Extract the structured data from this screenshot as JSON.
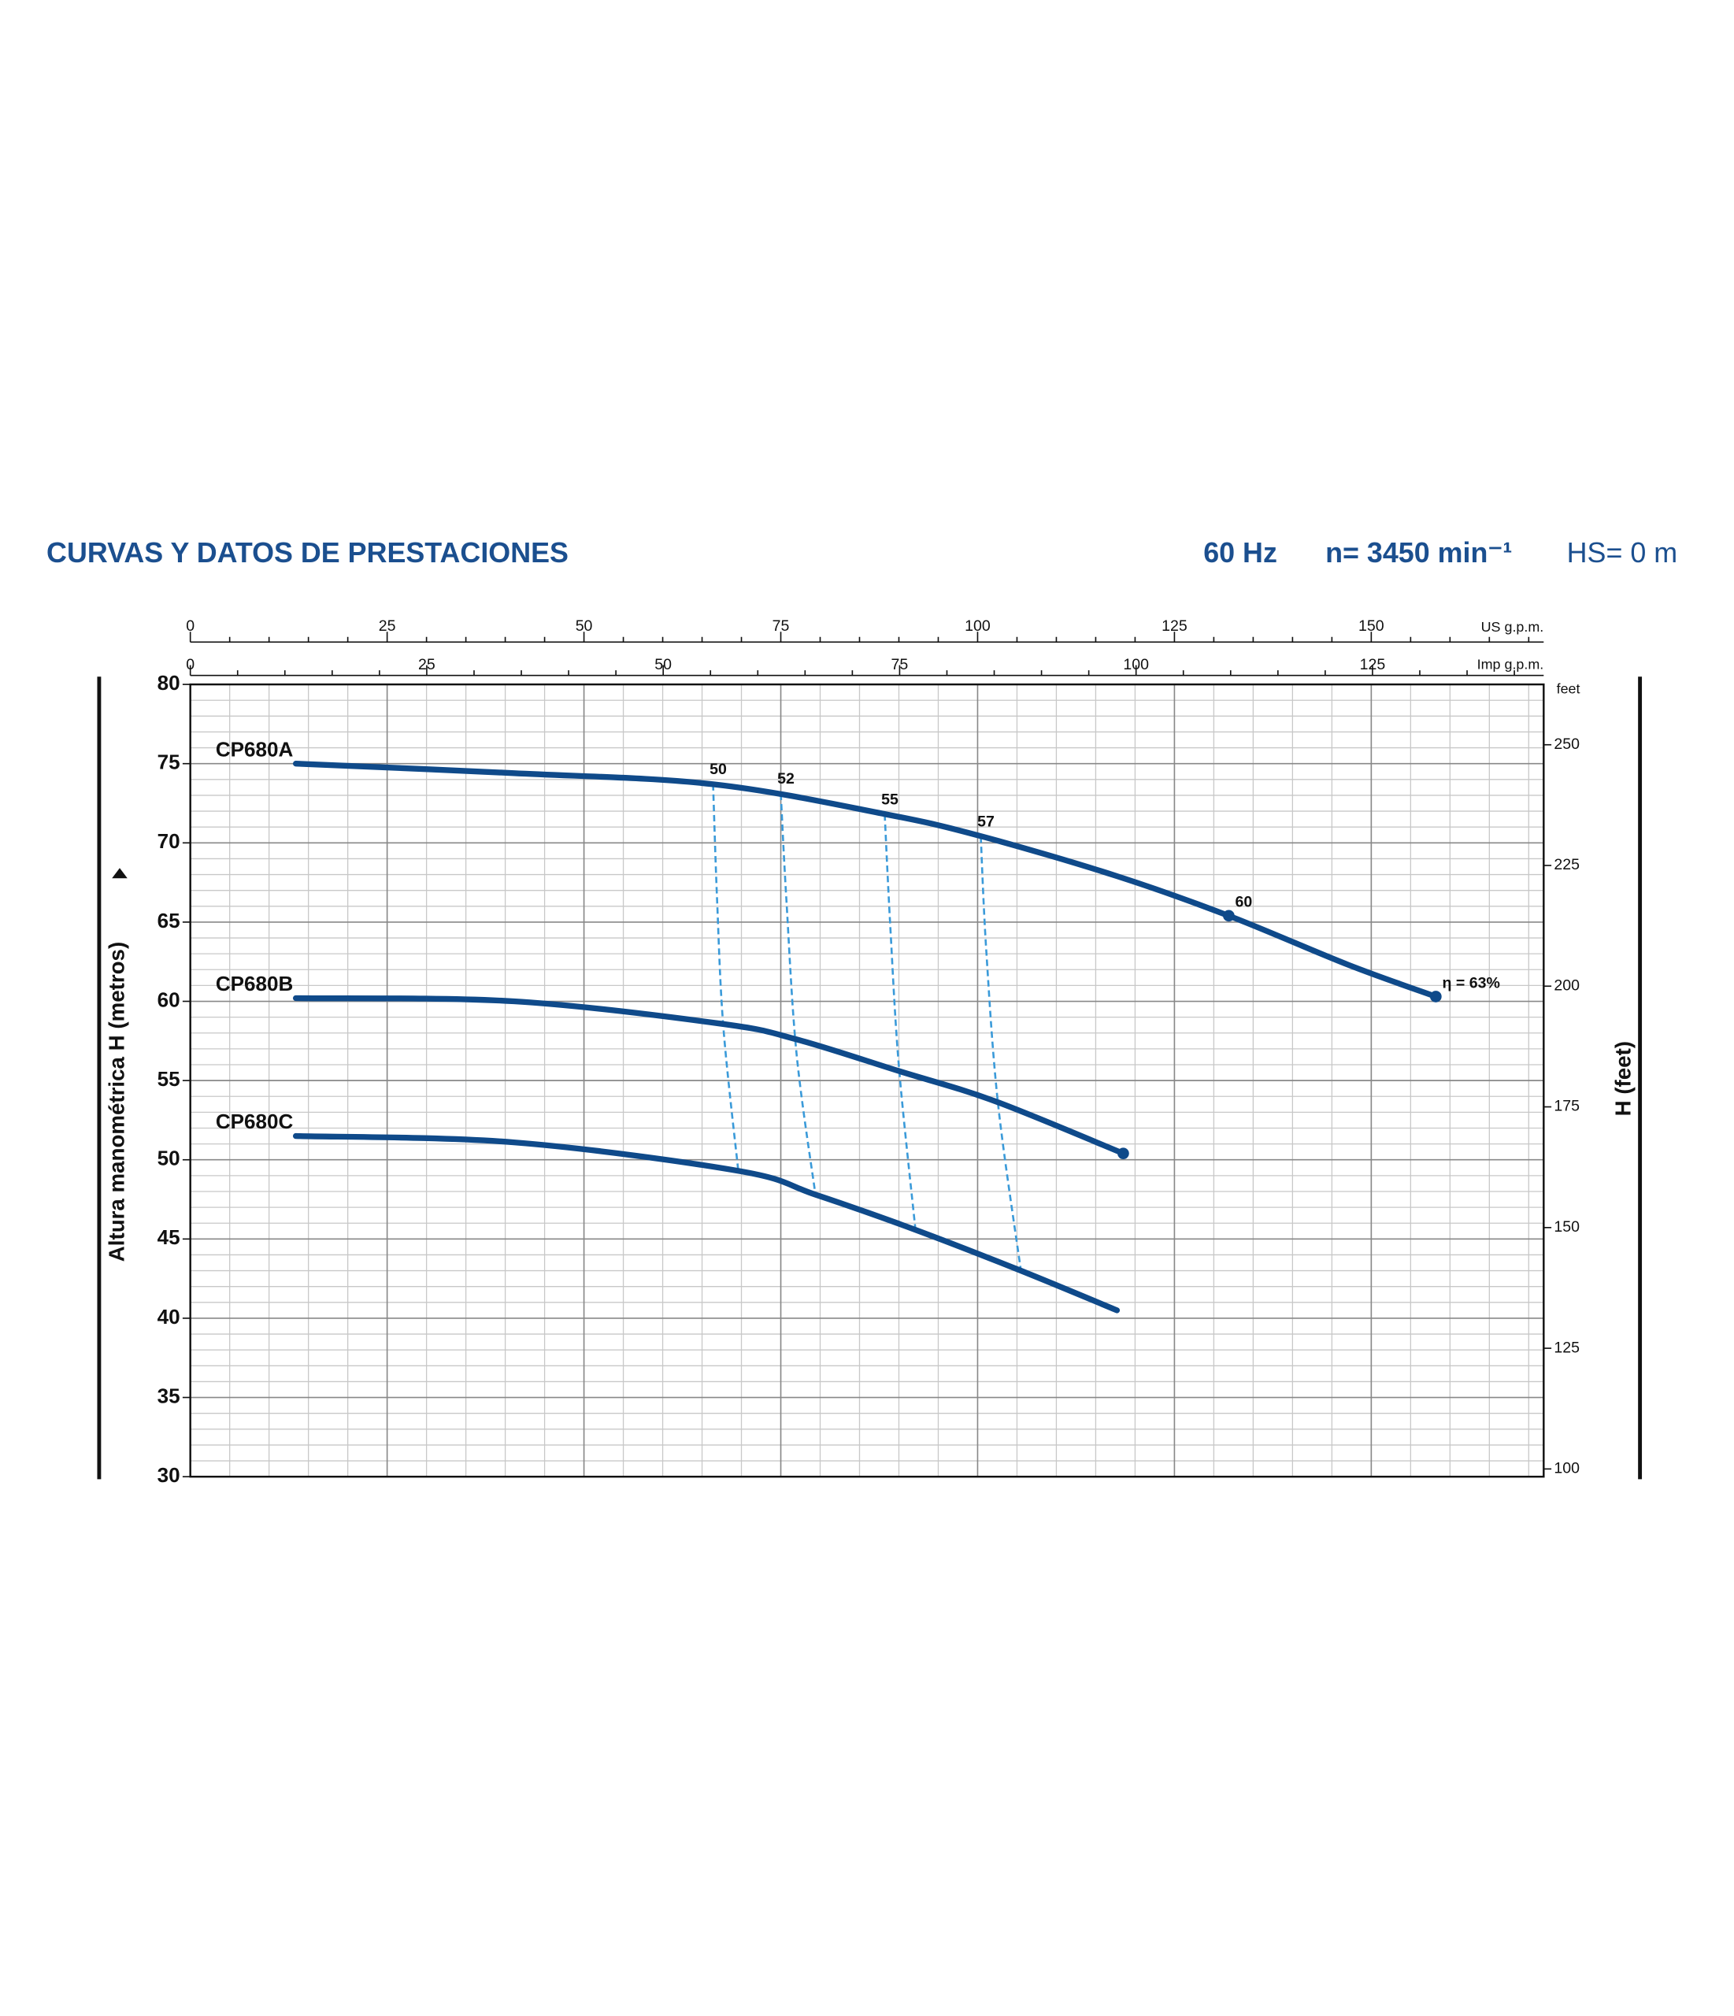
{
  "header": {
    "title": "CURVAS Y DATOS DE PRESTACIONES",
    "frequency": "60 Hz",
    "speed": "n= 3450 min⁻¹",
    "suction": "HS= 0 m"
  },
  "chart_data": {
    "type": "line",
    "ylabel": "Altura manométrica H  (metros)",
    "y2label": "H (feet)",
    "y2unit": "feet",
    "xunit": "US g.p.m.",
    "x2unit": "Imp g.p.m.",
    "xlim": [
      0,
      171.9
    ],
    "xticks": [
      0,
      25,
      50,
      75,
      100,
      125,
      150
    ],
    "xminorticks": [
      5,
      10,
      15,
      20,
      30,
      35,
      40,
      45,
      55,
      60,
      65,
      70,
      80,
      85,
      90,
      95,
      105,
      110,
      115,
      120,
      130,
      135,
      140,
      145,
      155,
      160,
      165,
      170
    ],
    "x2lim": [
      0,
      143.1
    ],
    "x2ticks": [
      0,
      25,
      50,
      75,
      100,
      125
    ],
    "x2minorticks": [
      5,
      10,
      15,
      20,
      30,
      35,
      40,
      45,
      55,
      60,
      65,
      70,
      80,
      85,
      90,
      95,
      105,
      110,
      115,
      120,
      130,
      135,
      140
    ],
    "ylim": [
      30,
      80
    ],
    "yticks": [
      30,
      35,
      40,
      45,
      50,
      55,
      60,
      65,
      70,
      75,
      80
    ],
    "yminorticks": [
      31,
      32,
      33,
      34,
      36,
      37,
      38,
      39,
      41,
      42,
      43,
      44,
      46,
      47,
      48,
      49,
      51,
      52,
      53,
      54,
      56,
      57,
      58,
      59,
      61,
      62,
      63,
      64,
      66,
      67,
      68,
      69,
      71,
      72,
      73,
      74,
      76,
      77,
      78,
      79
    ],
    "y2lim": [
      98.4,
      262.5
    ],
    "y2ticks": [
      100,
      125,
      150,
      175,
      200,
      225,
      250
    ],
    "grid": true,
    "series": [
      {
        "name": "CP680A",
        "color": "#0f4a8a",
        "x": [
          13.4,
          41.1,
          66.4,
          88.4,
          100.6,
          117.7,
          131.9,
          147.1,
          158.2
        ],
        "values": [
          75.0,
          74.4,
          73.7,
          71.8,
          70.4,
          67.9,
          65.4,
          62.3,
          60.3
        ],
        "end_marker": false
      },
      {
        "name": "CP680B",
        "color": "#0f4a8a",
        "x": [
          13.4,
          41.1,
          67.2,
          77.0,
          90.0,
          102.2,
          118.5
        ],
        "values": [
          60.2,
          60.0,
          58.6,
          57.6,
          55.6,
          53.7,
          50.4
        ],
        "end_marker": true
      },
      {
        "name": "CP680C",
        "color": "#0f4a8a",
        "x": [
          13.4,
          41.1,
          69.6,
          79.4,
          92.0,
          105.5,
          117.7
        ],
        "values": [
          51.5,
          51.1,
          49.3,
          47.8,
          45.6,
          43.0,
          40.5
        ],
        "end_marker": false
      }
    ],
    "efficiency_color": "#3a9ad9",
    "efficiency_lines": [
      {
        "label": "50",
        "x": [
          66.4,
          66.9,
          67.7,
          69.6
        ],
        "values": [
          73.7,
          66.5,
          58.4,
          49.3
        ]
      },
      {
        "label": "52",
        "x": [
          75.0,
          75.7,
          77.0,
          79.4
        ],
        "values": [
          73.1,
          66.5,
          56.7,
          47.8
        ]
      },
      {
        "label": "55",
        "x": [
          88.2,
          88.9,
          90.0,
          92.1
        ],
        "values": [
          71.8,
          64.8,
          55.9,
          45.6
        ]
      },
      {
        "label": "57",
        "x": [
          100.4,
          101.1,
          102.6,
          105.5
        ],
        "values": [
          70.4,
          63.2,
          53.5,
          43.0
        ]
      }
    ],
    "efficiency_points": [
      {
        "label": "60",
        "x": 131.9,
        "value": 65.4
      },
      {
        "label": "η = 63%",
        "x": 158.2,
        "value": 60.3
      }
    ]
  }
}
